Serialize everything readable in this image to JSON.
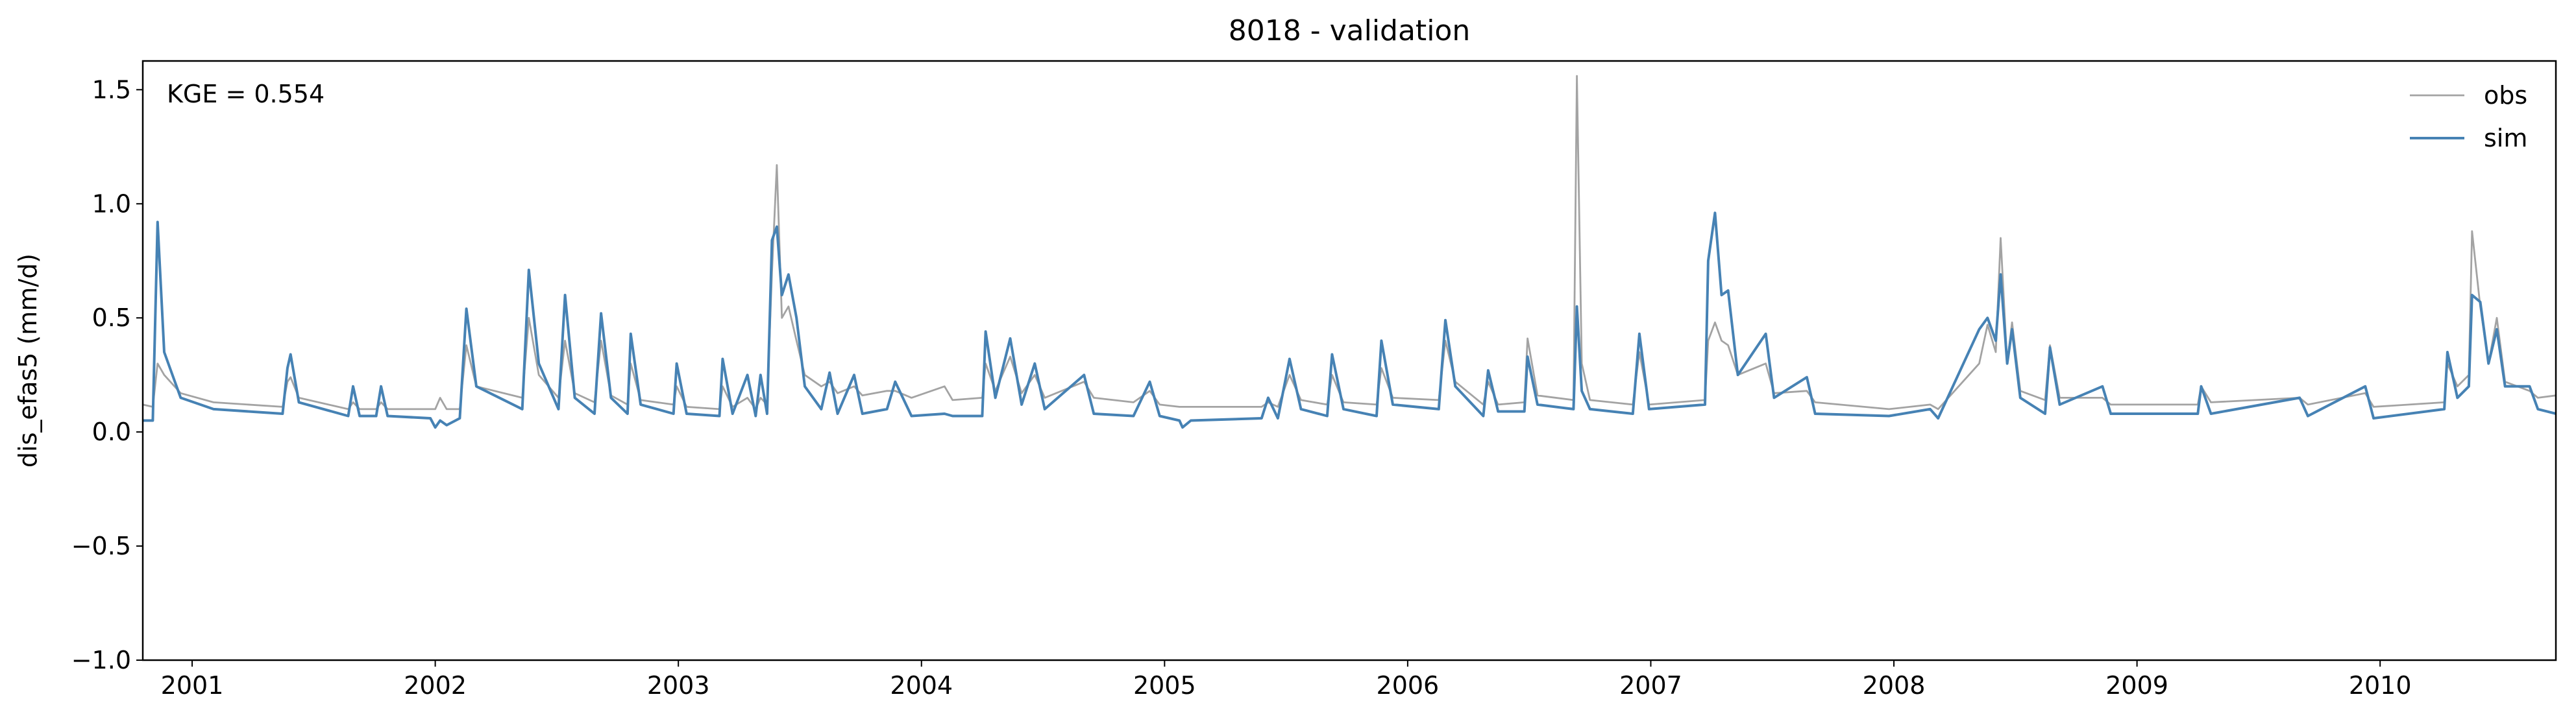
{
  "chart_data": {
    "type": "line",
    "title": "8018 - validation",
    "ylabel": "dis_efas5 (mm/d)",
    "annotation": "KGE = 0.554",
    "legend": "upper right",
    "grid": false,
    "xlim": [
      2000.797,
      2010.723
    ],
    "xticks": [
      2001,
      2002,
      2003,
      2004,
      2005,
      2006,
      2007,
      2008,
      2009,
      2010
    ],
    "ylim": [
      -1.0,
      1.626
    ],
    "yticks": [
      {
        "value": -1.0,
        "label": "−1.0"
      },
      {
        "value": -0.5,
        "label": "−0.5"
      },
      {
        "value": 0,
        "label": "0.0"
      },
      {
        "value": 0.5,
        "label": "0.5"
      },
      {
        "value": 1.0,
        "label": "1.0"
      },
      {
        "value": 1.5,
        "label": "1.5"
      }
    ],
    "x": [
      2000.797,
      2000.838,
      2000.858,
      2000.885,
      2000.953,
      2001.088,
      2001.372,
      2001.392,
      2001.405,
      2001.439,
      2001.642,
      2001.662,
      2001.689,
      2001.757,
      2001.777,
      2001.804,
      2001.98,
      2002.0,
      2002.02,
      2002.047,
      2002.101,
      2002.128,
      2002.169,
      2002.358,
      2002.385,
      2002.426,
      2002.507,
      2002.534,
      2002.574,
      2002.655,
      2002.682,
      2002.723,
      2002.791,
      2002.804,
      2002.845,
      2002.98,
      2002.993,
      2003.034,
      2003.169,
      2003.182,
      2003.223,
      2003.284,
      2003.318,
      2003.338,
      2003.365,
      2003.385,
      2003.405,
      2003.426,
      2003.453,
      2003.486,
      2003.52,
      2003.588,
      2003.622,
      2003.655,
      2003.723,
      2003.757,
      2003.858,
      2003.892,
      2003.959,
      2004.095,
      2004.128,
      2004.25,
      2004.264,
      2004.304,
      2004.365,
      2004.412,
      2004.466,
      2004.507,
      2004.669,
      2004.709,
      2004.872,
      2004.939,
      2004.98,
      2005.061,
      2005.074,
      2005.108,
      2005.399,
      2005.426,
      2005.466,
      2005.514,
      2005.561,
      2005.669,
      2005.689,
      2005.736,
      2005.872,
      2005.892,
      2005.939,
      2006.128,
      2006.155,
      2006.196,
      2006.311,
      2006.331,
      2006.372,
      2006.48,
      2006.493,
      2006.534,
      2006.682,
      2006.696,
      2006.716,
      2006.75,
      2006.926,
      2006.953,
      2006.993,
      2007.223,
      2007.236,
      2007.264,
      2007.291,
      2007.318,
      2007.358,
      2007.473,
      2007.507,
      2007.642,
      2007.676,
      2007.98,
      2008.149,
      2008.182,
      2008.351,
      2008.385,
      2008.419,
      2008.439,
      2008.466,
      2008.486,
      2008.52,
      2008.622,
      2008.642,
      2008.682,
      2008.858,
      2008.892,
      2009.25,
      2009.264,
      2009.304,
      2009.669,
      2009.703,
      2009.939,
      2009.973,
      2010.264,
      2010.277,
      2010.318,
      2010.365,
      2010.378,
      2010.412,
      2010.446,
      2010.48,
      2010.514,
      2010.615,
      2010.649,
      2010.723
    ],
    "series": [
      {
        "name": "obs",
        "color": "#a3a3a3",
        "values": [
          0.12,
          0.11,
          0.3,
          0.25,
          0.17,
          0.13,
          0.11,
          0.22,
          0.24,
          0.15,
          0.1,
          0.13,
          0.1,
          0.1,
          0.13,
          0.1,
          0.1,
          0.1,
          0.15,
          0.1,
          0.1,
          0.38,
          0.2,
          0.15,
          0.5,
          0.25,
          0.15,
          0.4,
          0.17,
          0.13,
          0.4,
          0.16,
          0.12,
          0.3,
          0.14,
          0.12,
          0.2,
          0.11,
          0.1,
          0.2,
          0.11,
          0.15,
          0.1,
          0.15,
          0.12,
          0.7,
          1.17,
          0.5,
          0.55,
          0.4,
          0.25,
          0.2,
          0.22,
          0.17,
          0.2,
          0.16,
          0.18,
          0.18,
          0.15,
          0.2,
          0.14,
          0.15,
          0.3,
          0.18,
          0.33,
          0.17,
          0.25,
          0.15,
          0.22,
          0.15,
          0.13,
          0.18,
          0.12,
          0.11,
          0.11,
          0.11,
          0.11,
          0.13,
          0.11,
          0.25,
          0.14,
          0.12,
          0.25,
          0.13,
          0.12,
          0.28,
          0.15,
          0.14,
          0.4,
          0.22,
          0.12,
          0.22,
          0.12,
          0.13,
          0.41,
          0.16,
          0.14,
          1.56,
          0.3,
          0.14,
          0.12,
          0.35,
          0.12,
          0.14,
          0.4,
          0.48,
          0.4,
          0.38,
          0.25,
          0.3,
          0.17,
          0.18,
          0.13,
          0.1,
          0.12,
          0.1,
          0.3,
          0.47,
          0.35,
          0.85,
          0.3,
          0.48,
          0.18,
          0.14,
          0.38,
          0.15,
          0.15,
          0.12,
          0.12,
          0.2,
          0.13,
          0.15,
          0.12,
          0.17,
          0.11,
          0.13,
          0.3,
          0.2,
          0.25,
          0.88,
          0.55,
          0.3,
          0.5,
          0.22,
          0.18,
          0.15,
          0.16
        ]
      },
      {
        "name": "sim",
        "color": "#4682b4",
        "values": [
          0.05,
          0.05,
          0.92,
          0.35,
          0.15,
          0.1,
          0.08,
          0.28,
          0.34,
          0.13,
          0.07,
          0.2,
          0.07,
          0.07,
          0.2,
          0.07,
          0.06,
          0.02,
          0.05,
          0.03,
          0.06,
          0.54,
          0.2,
          0.1,
          0.71,
          0.3,
          0.1,
          0.6,
          0.15,
          0.08,
          0.52,
          0.15,
          0.08,
          0.43,
          0.12,
          0.08,
          0.3,
          0.08,
          0.07,
          0.32,
          0.08,
          0.25,
          0.07,
          0.25,
          0.08,
          0.84,
          0.9,
          0.6,
          0.69,
          0.5,
          0.2,
          0.1,
          0.26,
          0.08,
          0.25,
          0.08,
          0.1,
          0.22,
          0.07,
          0.08,
          0.07,
          0.07,
          0.44,
          0.15,
          0.41,
          0.12,
          0.3,
          0.1,
          0.25,
          0.08,
          0.07,
          0.22,
          0.07,
          0.05,
          0.02,
          0.05,
          0.06,
          0.15,
          0.06,
          0.32,
          0.1,
          0.07,
          0.34,
          0.1,
          0.07,
          0.4,
          0.12,
          0.1,
          0.49,
          0.2,
          0.07,
          0.27,
          0.09,
          0.09,
          0.33,
          0.12,
          0.1,
          0.55,
          0.18,
          0.1,
          0.08,
          0.43,
          0.1,
          0.12,
          0.75,
          0.96,
          0.6,
          0.62,
          0.25,
          0.43,
          0.15,
          0.24,
          0.08,
          0.07,
          0.1,
          0.06,
          0.45,
          0.5,
          0.4,
          0.69,
          0.3,
          0.45,
          0.15,
          0.08,
          0.37,
          0.12,
          0.2,
          0.08,
          0.08,
          0.2,
          0.08,
          0.15,
          0.07,
          0.2,
          0.06,
          0.1,
          0.35,
          0.15,
          0.2,
          0.6,
          0.57,
          0.3,
          0.45,
          0.2,
          0.2,
          0.1,
          0.08
        ]
      }
    ]
  }
}
